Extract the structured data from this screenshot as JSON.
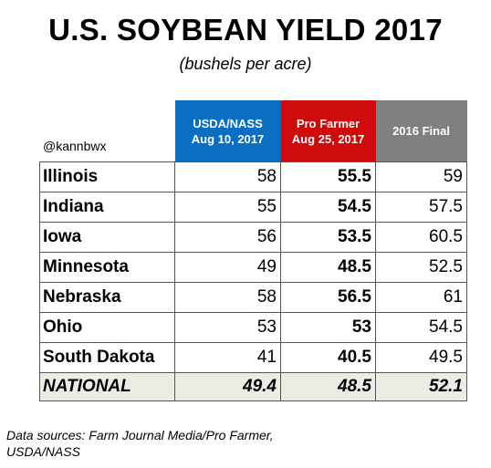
{
  "chart_data": {
    "type": "table",
    "title": "U.S. SOYBEAN YIELD 2017",
    "subtitle": "(bushels per acre)",
    "handle": "@kannbwx",
    "columns": [
      {
        "line1": "USDA/NASS",
        "line2": "Aug 10, 2017",
        "color": "#0a6fc2"
      },
      {
        "line1": "Pro Farmer",
        "line2": "Aug 25, 2017",
        "color": "#cf0a0a"
      },
      {
        "line1": "2016 Final",
        "line2": "",
        "color": "#7f7f7f"
      }
    ],
    "rows": [
      {
        "state": "Illinois",
        "values": [
          "58",
          "55.5",
          "59"
        ]
      },
      {
        "state": "Indiana",
        "values": [
          "55",
          "54.5",
          "57.5"
        ]
      },
      {
        "state": "Iowa",
        "values": [
          "56",
          "53.5",
          "60.5"
        ]
      },
      {
        "state": "Minnesota",
        "values": [
          "49",
          "48.5",
          "52.5"
        ]
      },
      {
        "state": "Nebraska",
        "values": [
          "58",
          "56.5",
          "61"
        ]
      },
      {
        "state": "Ohio",
        "values": [
          "53",
          "53",
          "54.5"
        ]
      },
      {
        "state": "South Dakota",
        "values": [
          "41",
          "40.5",
          "49.5"
        ]
      }
    ],
    "national": {
      "state": "NATIONAL",
      "values": [
        "49.4",
        "48.5",
        "52.1"
      ]
    },
    "sources": "Data sources: Farm Journal Media/Pro Farmer, USDA/NASS"
  }
}
